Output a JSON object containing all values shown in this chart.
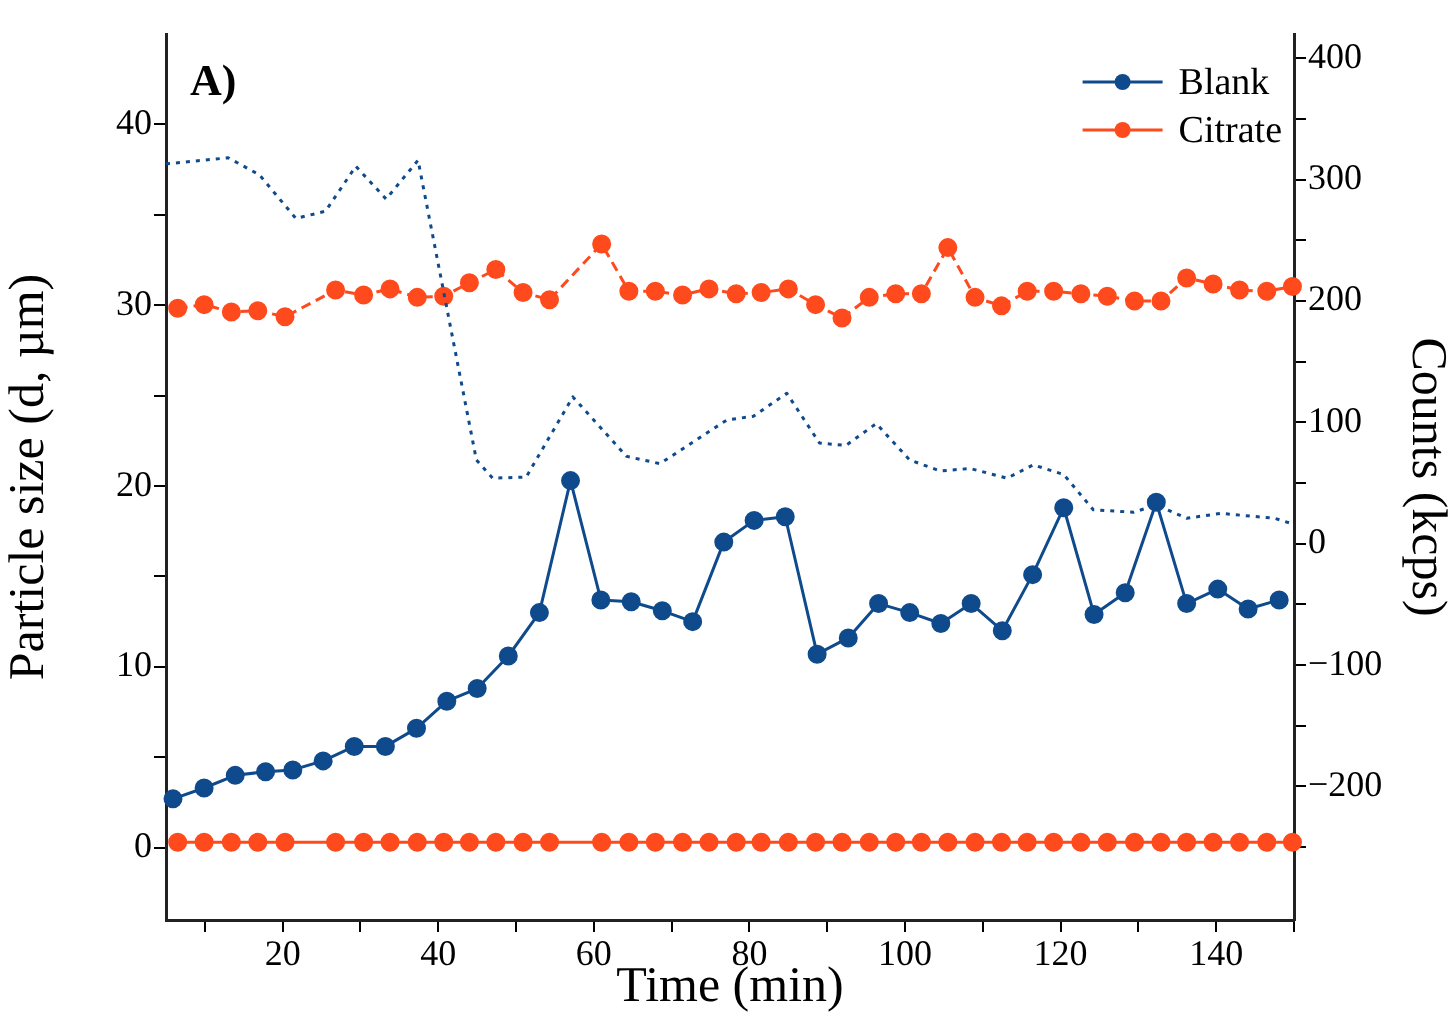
{
  "chart_data": {
    "type": "line",
    "xlabel": "Time (min)",
    "ylabel": "Particle size (d, µm)",
    "y2label": "Counts (kcps)",
    "annotations": [
      "A)"
    ],
    "xlim": [
      5,
      150
    ],
    "xticks": [
      {
        "value": 10,
        "label": null
      },
      20,
      {
        "value": 30,
        "label": null
      },
      40,
      {
        "value": 50,
        "label": null
      },
      60,
      {
        "value": 70,
        "label": null
      },
      80,
      {
        "value": 90,
        "label": null
      },
      100,
      {
        "value": 110,
        "label": null
      },
      120,
      {
        "value": 130,
        "label": null
      },
      140,
      {
        "value": 150,
        "label": null
      }
    ],
    "ylim": [
      -4,
      45
    ],
    "yticks": [
      0,
      {
        "value": 5,
        "label": null
      },
      10,
      {
        "value": 15,
        "label": null
      },
      20,
      {
        "value": 25,
        "label": null
      },
      30,
      {
        "value": 35,
        "label": null
      },
      40
    ],
    "y2lim": [
      -310,
      420
    ],
    "y2ticks": [
      {
        "value": -250,
        "label": null
      },
      {
        "value": -200,
        "label": "−200"
      },
      {
        "value": -150,
        "label": null
      },
      {
        "value": -100,
        "label": "−100"
      },
      {
        "value": -50,
        "label": null
      },
      0,
      {
        "value": 50,
        "label": null
      },
      100,
      {
        "value": 150,
        "label": null
      },
      200,
      {
        "value": 250,
        "label": null
      },
      300,
      {
        "value": 350,
        "label": null
      },
      400
    ],
    "legend": "top right",
    "grid": false,
    "series": [
      {
        "name": "Blank",
        "color": "#0e4a8c",
        "marker": "circle",
        "line_style": "solid",
        "x": [
          5.9,
          9.9,
          13.9,
          17.8,
          21.3,
          25.2,
          29.2,
          33.2,
          37.2,
          41.1,
          45,
          49,
          53,
          57,
          60.9,
          64.8,
          68.8,
          72.7,
          76.7,
          80.6,
          84.6,
          88.7,
          92.7,
          96.6,
          100.6,
          104.6,
          108.5,
          112.5,
          116.4,
          120.4,
          124.3,
          128.3,
          132.3,
          136.2,
          140.2,
          144.1,
          148.1
        ],
        "values": [
          2.7,
          3.3,
          4.0,
          4.2,
          4.3,
          4.8,
          5.6,
          5.6,
          6.6,
          8.1,
          8.8,
          10.6,
          13.0,
          20.3,
          13.7,
          13.6,
          13.1,
          12.5,
          16.9,
          18.1,
          18.3,
          10.7,
          11.6,
          13.5,
          13.0,
          12.4,
          13.5,
          12.0,
          15.1,
          18.8,
          12.9,
          14.1,
          19.1,
          13.5,
          14.3,
          13.2,
          13.7
        ]
      },
      {
        "name": "Citrate",
        "color": "#fe4a1c",
        "marker": "circle",
        "line_style": "solid",
        "x": [
          6.5,
          9.9,
          13.4,
          16.8,
          20.3,
          26.8,
          30.4,
          33.8,
          37.3,
          40.7,
          44,
          47.4,
          50.9,
          54.3,
          61,
          64.5,
          67.9,
          71.4,
          74.8,
          78.3,
          81.5,
          85,
          88.5,
          91.9,
          95.4,
          98.8,
          102.1,
          105.5,
          109,
          112.4,
          115.7,
          119.1,
          122.6,
          126,
          129.5,
          132.9,
          136.2,
          139.6,
          143,
          146.5,
          149.8
        ],
        "values": [
          0.3,
          0.3,
          0.3,
          0.3,
          0.3,
          0.3,
          0.3,
          0.3,
          0.3,
          0.3,
          0.3,
          0.3,
          0.3,
          0.3,
          0.3,
          0.3,
          0.3,
          0.3,
          0.3,
          0.3,
          0.3,
          0.3,
          0.3,
          0.3,
          0.3,
          0.3,
          0.3,
          0.3,
          0.3,
          0.3,
          0.3,
          0.3,
          0.3,
          0.3,
          0.3,
          0.3,
          0.3,
          0.3,
          0.3,
          0.3,
          0.3
        ]
      },
      {
        "color": "#0e4a8c",
        "axis": "y2",
        "marker": "none",
        "line_style": "dotted",
        "x": [
          5,
          13,
          17,
          21.7,
          25.5,
          29.4,
          33.3,
          37.4,
          44.9,
          47,
          51.3,
          57.3,
          64.2,
          68.5,
          77.1,
          80.5,
          84.8,
          89,
          92.4,
          96.3,
          100.6,
          104.5,
          108.4,
          113.1,
          116.5,
          120.4,
          124.2,
          129.4,
          132.3,
          136.2,
          140.6,
          147.5,
          150
        ],
        "values": [
          313,
          318,
          304,
          268,
          274,
          311,
          284,
          316,
          69,
          54,
          55,
          121,
          72,
          66,
          102,
          105,
          124,
          83,
          81,
          99,
          69,
          60,
          62,
          54,
          65,
          57,
          28,
          26,
          32,
          21,
          25,
          21,
          16
        ]
      },
      {
        "color": "#fe4a1c",
        "axis": "y2",
        "marker": "circle",
        "line_style": "dashed",
        "x": [
          6.5,
          9.9,
          13.4,
          16.8,
          20.3,
          26.8,
          30.4,
          33.8,
          37.3,
          40.7,
          44,
          47.4,
          50.9,
          54.3,
          61,
          64.5,
          67.9,
          71.4,
          74.8,
          78.3,
          81.5,
          85,
          88.5,
          91.9,
          95.4,
          98.8,
          102.1,
          105.5,
          109,
          112.4,
          115.7,
          119.1,
          122.6,
          126,
          129.5,
          132.9,
          136.2,
          139.6,
          143,
          146.5,
          149.8
        ],
        "values": [
          194,
          197,
          191,
          192,
          187,
          209,
          205,
          210,
          203,
          204,
          215,
          226,
          207,
          201,
          247,
          208,
          208,
          205,
          210,
          206,
          207,
          210,
          197,
          186,
          203,
          206,
          206,
          244,
          203,
          196,
          208,
          208,
          206,
          204,
          200,
          200,
          219,
          214,
          209,
          208,
          212
        ]
      }
    ]
  }
}
